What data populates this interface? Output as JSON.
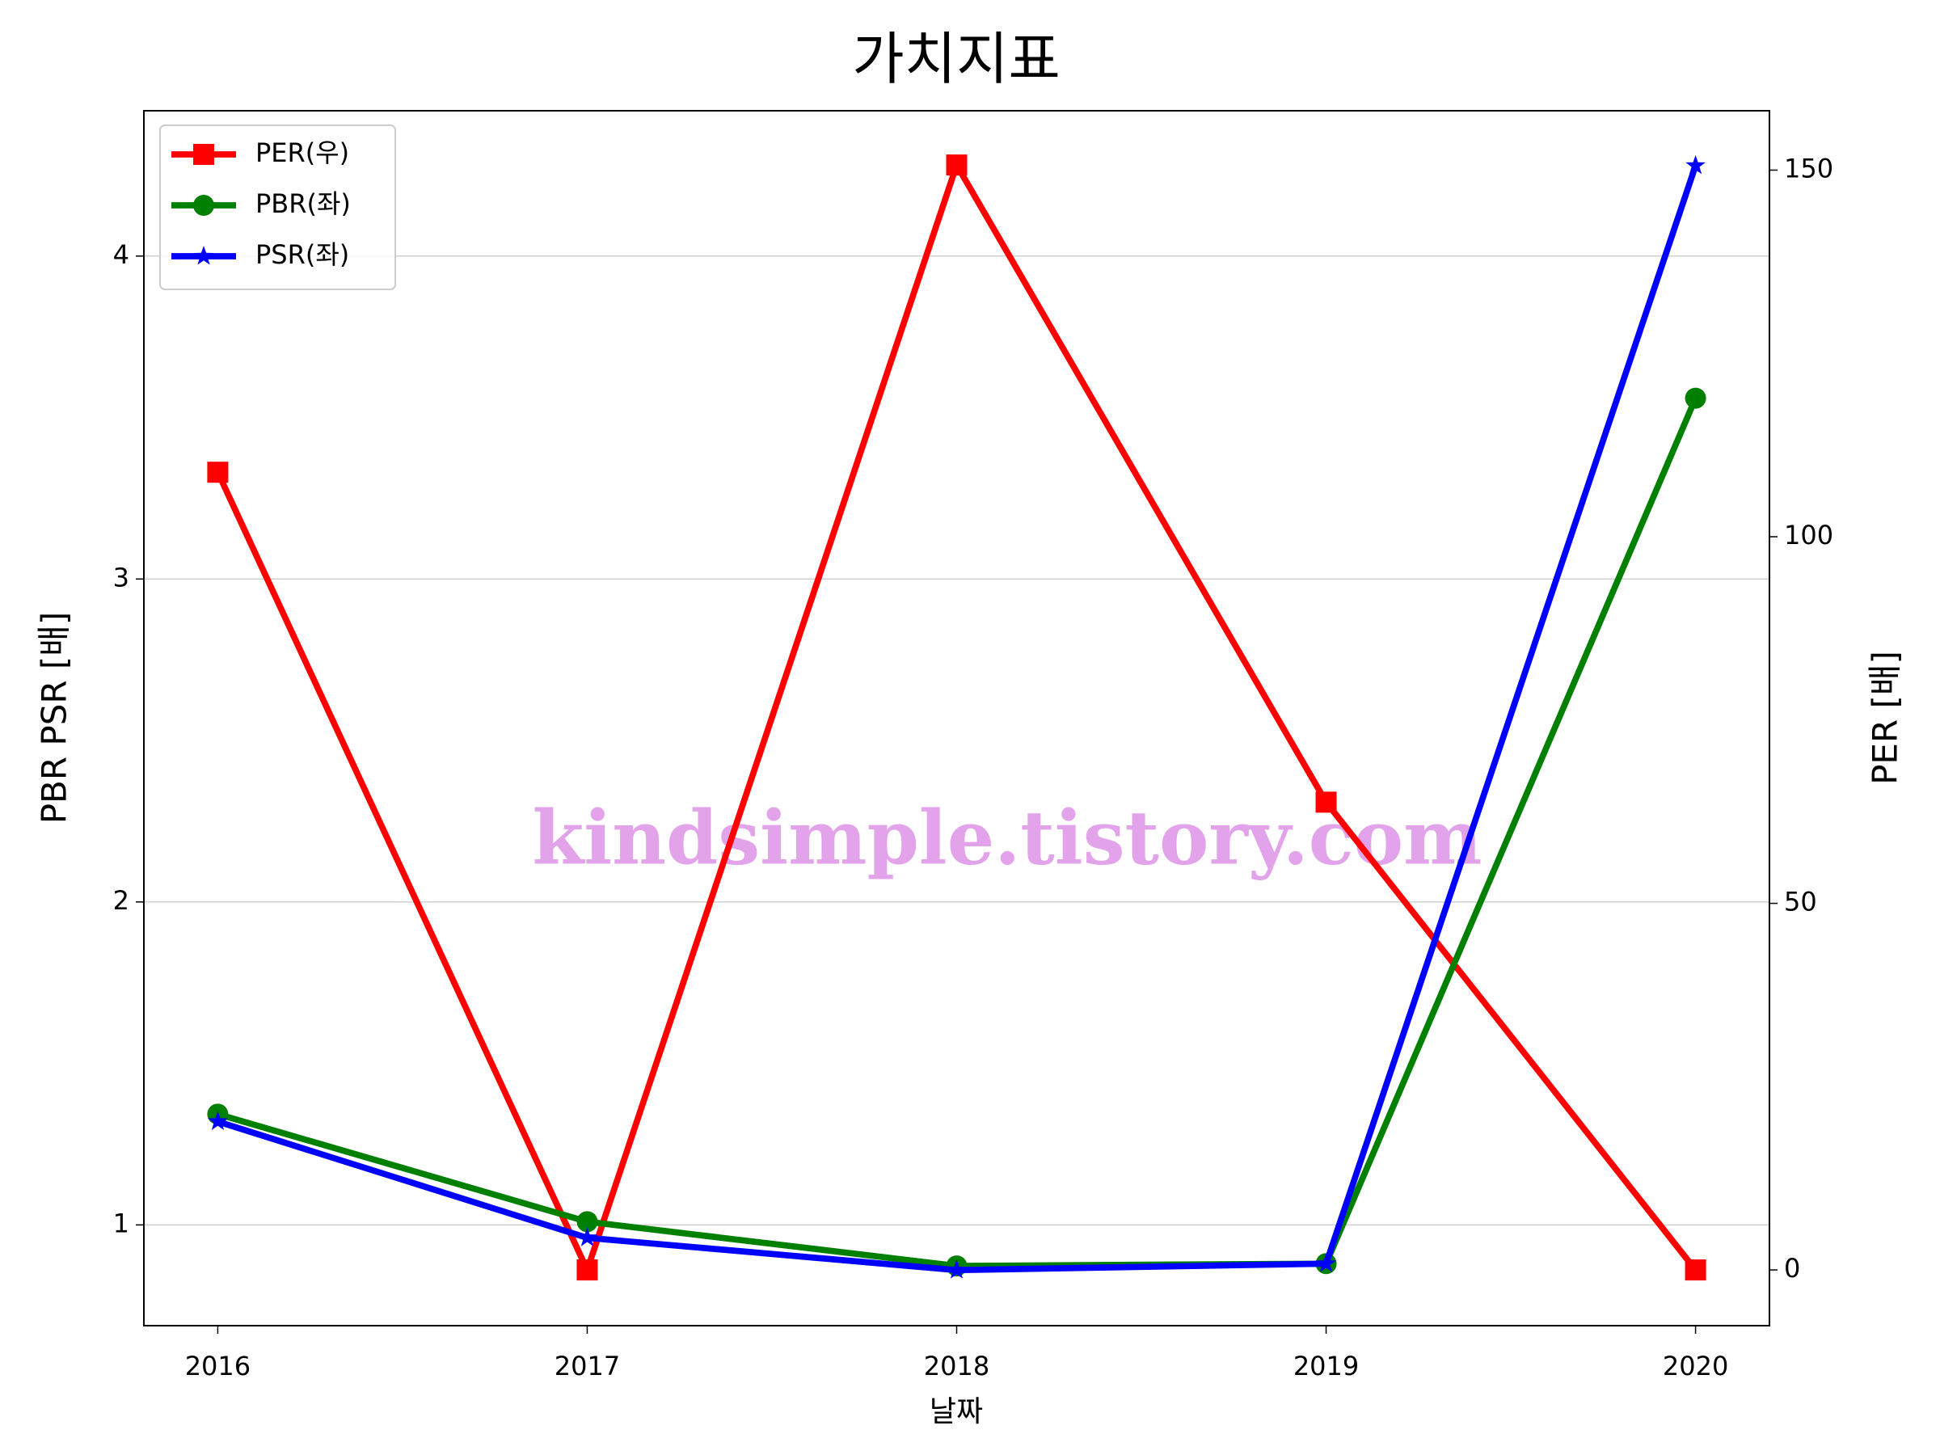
{
  "chart_data": {
    "type": "line",
    "title": "가치지표",
    "xlabel": "날짜",
    "ylabel": "PBR PSR [배]",
    "y2label": "PER [배]",
    "ylabel_color": "#008000",
    "y2label_color": "#ff0000",
    "annotation": "kindsimple.tistory.com",
    "x": [
      2016,
      2017,
      2018,
      2019,
      2020
    ],
    "xlim": [
      2015.8,
      2020.2
    ],
    "xticks": [
      2016,
      2017,
      2018,
      2019,
      2020
    ],
    "ylim": [
      0.688,
      4.45
    ],
    "yticks": [
      1,
      2,
      3,
      4
    ],
    "y2lim": [
      -7.6,
      158.1
    ],
    "y2ticks": [
      0,
      50,
      100,
      150
    ],
    "grid": true,
    "legend": "upper left",
    "series": [
      {
        "name": "PER(우)",
        "color": "#ff0000",
        "marker": "square",
        "axis": "y2",
        "values": [
          108.8,
          0,
          150.7,
          63.8,
          0
        ]
      },
      {
        "name": "PBR(좌)",
        "color": "#008000",
        "marker": "circle",
        "values": [
          1.343,
          1.01,
          0.873,
          0.88,
          3.56
        ]
      },
      {
        "name": "PSR(좌)",
        "color": "#0000ff",
        "marker": "star",
        "values": [
          1.32,
          0.96,
          0.86,
          0.88,
          4.28
        ]
      }
    ]
  }
}
